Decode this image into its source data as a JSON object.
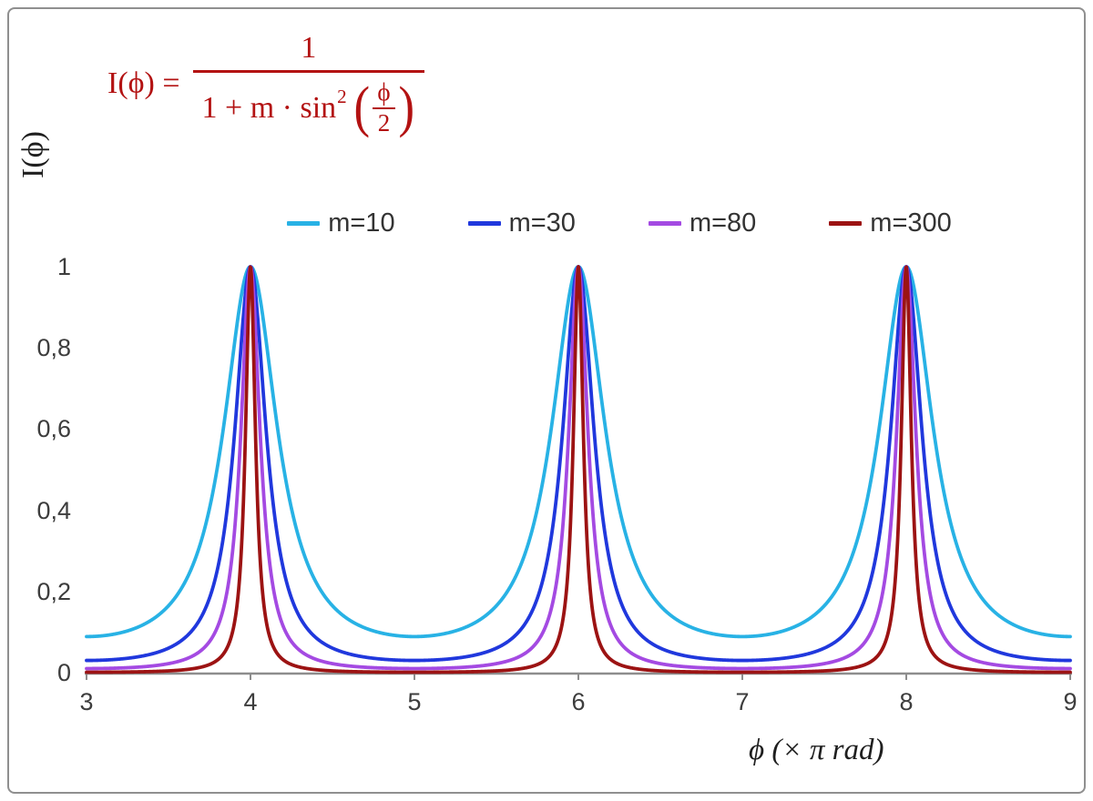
{
  "formula": {
    "lhs": "I(ϕ) =",
    "numerator": "1",
    "den_text": "1 + m · sin",
    "den_sup": "2",
    "open_paren": "(",
    "close_paren": ")",
    "inner_num": "ϕ",
    "inner_den": "2",
    "color": "#b31212"
  },
  "chart_data": {
    "type": "line",
    "title": "",
    "function": "I(ϕ) = 1 / (1 + m · sin²(ϕ/2))",
    "y_formula_in_x_units": "y = 1 / (1 + m * sin^2(pi*x/2)), x in units of pi rad",
    "xlabel": "ϕ  (× π rad)",
    "ylabel": "I(ϕ)",
    "xlim": [
      3,
      9
    ],
    "ylim": [
      0,
      1
    ],
    "xtick_values": [
      3,
      4,
      5,
      6,
      7,
      8,
      9
    ],
    "xticks": [
      "3",
      "4",
      "5",
      "6",
      "7",
      "8",
      "9"
    ],
    "ytick_values": [
      0,
      0.2,
      0.4,
      0.6,
      0.8,
      1
    ],
    "yticks": [
      "0",
      "0,2",
      "0,4",
      "0,6",
      "0,8",
      "1"
    ],
    "grid": false,
    "legend_position": "top-center",
    "axis_color": "#8d8d8d",
    "peaks_at_x": [
      4,
      6,
      8
    ],
    "peak_value": 1,
    "series": [
      {
        "name": "m=10",
        "m": 10,
        "color": "#28b2e5",
        "min_value": 0.091
      },
      {
        "name": "m=30",
        "m": 30,
        "color": "#2038dd",
        "min_value": 0.032
      },
      {
        "name": "m=80",
        "m": 80,
        "color": "#a44ae2",
        "min_value": 0.012
      },
      {
        "name": "m=300",
        "m": 300,
        "color": "#9c1313",
        "min_value": 0.003
      }
    ]
  }
}
